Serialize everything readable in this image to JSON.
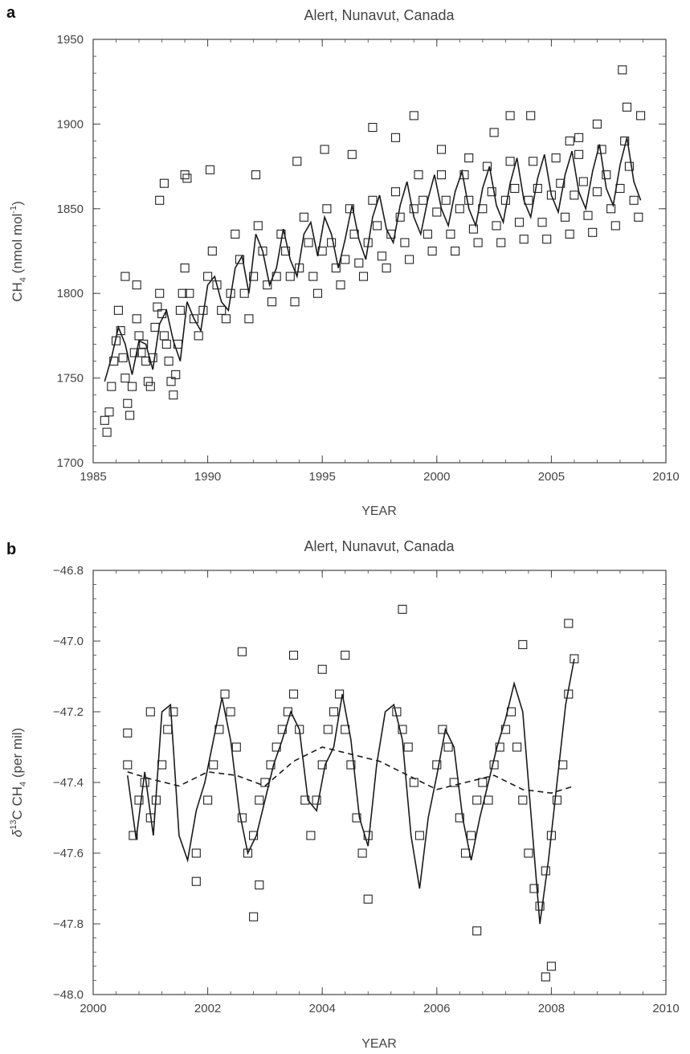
{
  "chart_data": [
    {
      "panel": "a",
      "type": "scatter",
      "title": "Alert, Nunavut, Canada",
      "xlabel": "YEAR",
      "ylabel": "CH4 (nmol mol-1)",
      "ylabel_parts": {
        "main": "CH",
        "sub": "4",
        "unit": " (nmol mol",
        "sup": "-1",
        "close": ")"
      },
      "xlim": [
        1985,
        2010
      ],
      "ylim": [
        1700,
        1950
      ],
      "xticks": [
        1985,
        1990,
        1995,
        2000,
        2005,
        2010
      ],
      "yticks": [
        1700,
        1750,
        1800,
        1850,
        1900,
        1950
      ],
      "grid": false,
      "legend": "none",
      "series": [
        {
          "marker": "open-square",
          "kind": "points",
          "x": [
            1985.5,
            1985.6,
            1985.7,
            1985.8,
            1985.9,
            1986.0,
            1986.1,
            1986.2,
            1986.3,
            1986.4,
            1986.5,
            1986.6,
            1986.7,
            1986.8,
            1986.9,
            1987.0,
            1987.1,
            1987.2,
            1987.3,
            1987.4,
            1987.5,
            1987.6,
            1987.7,
            1987.8,
            1987.9,
            1988.0,
            1988.1,
            1988.2,
            1988.3,
            1988.4,
            1988.5,
            1988.6,
            1988.7,
            1988.8,
            1988.9,
            1989.0,
            1989.2,
            1989.4,
            1989.6,
            1989.8,
            1990.0,
            1990.2,
            1990.4,
            1990.6,
            1990.8,
            1991.0,
            1991.2,
            1991.4,
            1991.6,
            1991.8,
            1992.0,
            1992.2,
            1992.4,
            1992.6,
            1992.8,
            1993.0,
            1993.2,
            1993.4,
            1993.6,
            1993.8,
            1994.0,
            1994.2,
            1994.4,
            1994.6,
            1994.8,
            1995.0,
            1995.2,
            1995.4,
            1995.6,
            1995.8,
            1996.0,
            1996.2,
            1996.4,
            1996.6,
            1996.8,
            1997.0,
            1997.2,
            1997.4,
            1997.6,
            1997.8,
            1998.0,
            1998.2,
            1998.4,
            1998.6,
            1998.8,
            1999.0,
            1999.2,
            1999.4,
            1999.6,
            1999.8,
            2000.0,
            2000.2,
            2000.4,
            2000.6,
            2000.8,
            2001.0,
            2001.2,
            2001.4,
            2001.6,
            2001.8,
            2002.0,
            2002.2,
            2002.4,
            2002.6,
            2002.8,
            2003.0,
            2003.2,
            2003.4,
            2003.6,
            2003.8,
            2004.0,
            2004.2,
            2004.4,
            2004.6,
            2004.8,
            2005.0,
            2005.2,
            2005.4,
            2005.6,
            2005.8,
            2006.0,
            2006.2,
            2006.4,
            2006.6,
            2006.8,
            2007.0,
            2007.2,
            2007.4,
            2007.6,
            2007.8,
            2008.0,
            2008.2,
            2008.4,
            2008.6,
            2008.8
          ],
          "y": [
            1725,
            1718,
            1730,
            1745,
            1760,
            1772,
            1790,
            1778,
            1762,
            1750,
            1735,
            1728,
            1745,
            1765,
            1785,
            1775,
            1765,
            1770,
            1760,
            1748,
            1745,
            1762,
            1780,
            1792,
            1800,
            1788,
            1775,
            1770,
            1760,
            1748,
            1740,
            1752,
            1770,
            1790,
            1800,
            1815,
            1800,
            1785,
            1775,
            1790,
            1810,
            1825,
            1805,
            1790,
            1785,
            1800,
            1835,
            1820,
            1800,
            1785,
            1810,
            1840,
            1825,
            1805,
            1795,
            1810,
            1835,
            1825,
            1810,
            1795,
            1815,
            1845,
            1830,
            1810,
            1800,
            1825,
            1850,
            1830,
            1815,
            1805,
            1820,
            1850,
            1835,
            1818,
            1810,
            1830,
            1855,
            1840,
            1822,
            1815,
            1835,
            1860,
            1845,
            1830,
            1820,
            1850,
            1870,
            1855,
            1835,
            1825,
            1848,
            1870,
            1855,
            1835,
            1825,
            1850,
            1870,
            1855,
            1838,
            1830,
            1850,
            1875,
            1860,
            1840,
            1830,
            1855,
            1878,
            1862,
            1842,
            1832,
            1855,
            1878,
            1862,
            1842,
            1832,
            1858,
            1880,
            1865,
            1845,
            1835,
            1858,
            1882,
            1866,
            1846,
            1836,
            1860,
            1885,
            1870,
            1850,
            1840,
            1862,
            1890,
            1875,
            1855,
            1845
          ]
        },
        {
          "marker": "open-square",
          "kind": "outliers",
          "x": [
            1986.4,
            1986.9,
            1987.9,
            1988.1,
            1989.0,
            1989.1,
            1990.1,
            1992.1,
            1993.9,
            1995.1,
            1996.3,
            1997.2,
            1998.2,
            1999.0,
            2000.2,
            2001.4,
            2002.5,
            2003.2,
            2004.1,
            2005.8,
            2006.2,
            2007.0,
            2008.1,
            2008.3,
            2008.9
          ],
          "y": [
            1810,
            1805,
            1855,
            1865,
            1870,
            1868,
            1873,
            1870,
            1878,
            1885,
            1882,
            1898,
            1892,
            1905,
            1885,
            1880,
            1895,
            1905,
            1905,
            1890,
            1892,
            1900,
            1932,
            1910,
            1905
          ]
        },
        {
          "marker": "none",
          "kind": "fit-line",
          "x": [
            1985.5,
            1985.8,
            1986.1,
            1986.4,
            1986.7,
            1987.0,
            1987.3,
            1987.6,
            1987.9,
            1988.2,
            1988.5,
            1988.8,
            1989.1,
            1989.4,
            1989.7,
            1990.0,
            1990.3,
            1990.6,
            1990.9,
            1991.2,
            1991.5,
            1991.8,
            1992.1,
            1992.4,
            1992.7,
            1993.0,
            1993.3,
            1993.6,
            1993.9,
            1994.2,
            1994.5,
            1994.8,
            1995.1,
            1995.4,
            1995.7,
            1996.0,
            1996.3,
            1996.6,
            1996.9,
            1997.2,
            1997.5,
            1997.8,
            1998.1,
            1998.4,
            1998.7,
            1999.0,
            1999.3,
            1999.6,
            1999.9,
            2000.2,
            2000.5,
            2000.8,
            2001.1,
            2001.4,
            2001.7,
            2002.0,
            2002.3,
            2002.6,
            2002.9,
            2003.2,
            2003.5,
            2003.8,
            2004.1,
            2004.4,
            2004.7,
            2005.0,
            2005.3,
            2005.6,
            2005.9,
            2006.2,
            2006.5,
            2006.8,
            2007.1,
            2007.4,
            2007.7,
            2008.0,
            2008.3,
            2008.6,
            2008.9
          ],
          "y": [
            1748,
            1762,
            1780,
            1770,
            1752,
            1772,
            1770,
            1755,
            1782,
            1790,
            1772,
            1760,
            1795,
            1785,
            1778,
            1805,
            1810,
            1795,
            1790,
            1815,
            1822,
            1800,
            1835,
            1825,
            1805,
            1815,
            1838,
            1820,
            1810,
            1835,
            1842,
            1822,
            1845,
            1835,
            1815,
            1832,
            1852,
            1832,
            1820,
            1845,
            1858,
            1838,
            1830,
            1852,
            1866,
            1845,
            1835,
            1855,
            1870,
            1850,
            1840,
            1860,
            1872,
            1850,
            1840,
            1862,
            1875,
            1852,
            1842,
            1865,
            1880,
            1855,
            1845,
            1868,
            1882,
            1858,
            1848,
            1870,
            1884,
            1860,
            1850,
            1872,
            1888,
            1862,
            1852,
            1876,
            1892,
            1866,
            1855
          ]
        }
      ]
    },
    {
      "panel": "b",
      "type": "scatter",
      "title": "Alert, Nunavut, Canada",
      "xlabel": "YEAR",
      "ylabel": "δ13C CH4 (per mil)",
      "ylabel_parts": {
        "delta": "δ",
        "sup": "13",
        "main": "C CH",
        "sub": "4",
        "unit": " (per mil)"
      },
      "xlim": [
        2000,
        2010
      ],
      "ylim": [
        -48.0,
        -46.8
      ],
      "xticks": [
        2000,
        2002,
        2004,
        2006,
        2008,
        2010
      ],
      "yticks": [
        -48.0,
        -47.8,
        -47.6,
        -47.4,
        -47.2,
        -47.0,
        -46.8
      ],
      "ytick_labels": [
        "−48.0",
        "−47.8",
        "−47.6",
        "−47.4",
        "−47.2",
        "−47.0",
        "−46.8"
      ],
      "grid": false,
      "legend": "none",
      "series": [
        {
          "marker": "open-square",
          "kind": "points",
          "x": [
            2000.6,
            2000.7,
            2000.8,
            2000.9,
            2001.0,
            2001.1,
            2001.2,
            2001.3,
            2001.4,
            2001.8,
            2002.0,
            2002.1,
            2002.2,
            2002.3,
            2002.4,
            2002.5,
            2002.6,
            2002.7,
            2002.8,
            2002.9,
            2003.0,
            2003.1,
            2003.2,
            2003.3,
            2003.4,
            2003.5,
            2003.6,
            2003.7,
            2003.8,
            2003.9,
            2004.0,
            2004.1,
            2004.2,
            2004.3,
            2004.4,
            2004.5,
            2004.6,
            2004.7,
            2004.8,
            2005.3,
            2005.4,
            2005.5,
            2005.6,
            2005.7,
            2006.0,
            2006.1,
            2006.2,
            2006.3,
            2006.4,
            2006.5,
            2006.6,
            2006.7,
            2006.8,
            2006.9,
            2007.0,
            2007.1,
            2007.2,
            2007.3,
            2007.4,
            2007.5,
            2007.6,
            2007.7,
            2007.8,
            2007.9,
            2008.0,
            2008.1,
            2008.2,
            2008.3,
            2008.4
          ],
          "y": [
            -47.35,
            -47.55,
            -47.45,
            -47.4,
            -47.5,
            -47.45,
            -47.35,
            -47.25,
            -47.2,
            -47.6,
            -47.45,
            -47.35,
            -47.25,
            -47.15,
            -47.2,
            -47.3,
            -47.5,
            -47.6,
            -47.55,
            -47.45,
            -47.4,
            -47.35,
            -47.3,
            -47.25,
            -47.2,
            -47.15,
            -47.25,
            -47.45,
            -47.55,
            -47.45,
            -47.35,
            -47.25,
            -47.2,
            -47.15,
            -47.25,
            -47.35,
            -47.5,
            -47.6,
            -47.55,
            -47.2,
            -47.25,
            -47.3,
            -47.4,
            -47.55,
            -47.35,
            -47.25,
            -47.3,
            -47.4,
            -47.5,
            -47.6,
            -47.55,
            -47.45,
            -47.4,
            -47.45,
            -47.35,
            -47.3,
            -47.25,
            -47.2,
            -47.3,
            -47.45,
            -47.6,
            -47.7,
            -47.75,
            -47.65,
            -47.55,
            -47.45,
            -47.35,
            -47.15,
            -47.05
          ]
        },
        {
          "marker": "open-square",
          "kind": "outliers",
          "x": [
            2000.6,
            2001.0,
            2001.8,
            2002.6,
            2002.8,
            2002.9,
            2003.5,
            2004.0,
            2004.4,
            2004.8,
            2005.4,
            2006.7,
            2007.5,
            2007.9,
            2008.0,
            2008.3
          ],
          "y": [
            -47.26,
            -47.2,
            -47.68,
            -47.03,
            -47.78,
            -47.69,
            -47.04,
            -47.08,
            -47.04,
            -47.73,
            -46.91,
            -47.82,
            -47.01,
            -47.95,
            -47.92,
            -46.95
          ]
        },
        {
          "marker": "none",
          "kind": "fit-line",
          "x": [
            2000.6,
            2000.75,
            2000.9,
            2001.05,
            2001.2,
            2001.35,
            2001.5,
            2001.65,
            2001.8,
            2001.95,
            2002.1,
            2002.25,
            2002.4,
            2002.55,
            2002.7,
            2002.85,
            2003.0,
            2003.15,
            2003.3,
            2003.45,
            2003.6,
            2003.75,
            2003.9,
            2004.05,
            2004.2,
            2004.35,
            2004.5,
            2004.65,
            2004.8,
            2004.95,
            2005.1,
            2005.25,
            2005.4,
            2005.55,
            2005.7,
            2005.85,
            2006.0,
            2006.15,
            2006.3,
            2006.45,
            2006.6,
            2006.75,
            2006.9,
            2007.05,
            2007.2,
            2007.35,
            2007.5,
            2007.65,
            2007.8,
            2007.95,
            2008.1,
            2008.25,
            2008.4
          ],
          "y": [
            -47.38,
            -47.56,
            -47.37,
            -47.55,
            -47.2,
            -47.18,
            -47.55,
            -47.62,
            -47.48,
            -47.4,
            -47.28,
            -47.16,
            -47.28,
            -47.48,
            -47.6,
            -47.55,
            -47.45,
            -47.35,
            -47.28,
            -47.2,
            -47.25,
            -47.45,
            -47.48,
            -47.35,
            -47.3,
            -47.15,
            -47.28,
            -47.5,
            -47.58,
            -47.35,
            -47.2,
            -47.18,
            -47.28,
            -47.55,
            -47.7,
            -47.5,
            -47.38,
            -47.25,
            -47.3,
            -47.5,
            -47.62,
            -47.5,
            -47.4,
            -47.3,
            -47.22,
            -47.12,
            -47.2,
            -47.5,
            -47.8,
            -47.62,
            -47.4,
            -47.18,
            -47.05
          ]
        },
        {
          "marker": "none",
          "kind": "dashed-line",
          "x": [
            2000.6,
            2001.0,
            2001.5,
            2002.0,
            2002.5,
            2003.0,
            2003.5,
            2004.0,
            2004.5,
            2005.0,
            2005.5,
            2006.0,
            2006.5,
            2007.0,
            2007.5,
            2008.0,
            2008.4
          ],
          "y": [
            -47.37,
            -47.39,
            -47.41,
            -47.37,
            -47.38,
            -47.41,
            -47.34,
            -47.3,
            -47.32,
            -47.34,
            -47.38,
            -47.42,
            -47.4,
            -47.38,
            -47.42,
            -47.43,
            -47.41
          ]
        }
      ]
    }
  ],
  "panel_letters": {
    "a": "a",
    "b": "b"
  }
}
